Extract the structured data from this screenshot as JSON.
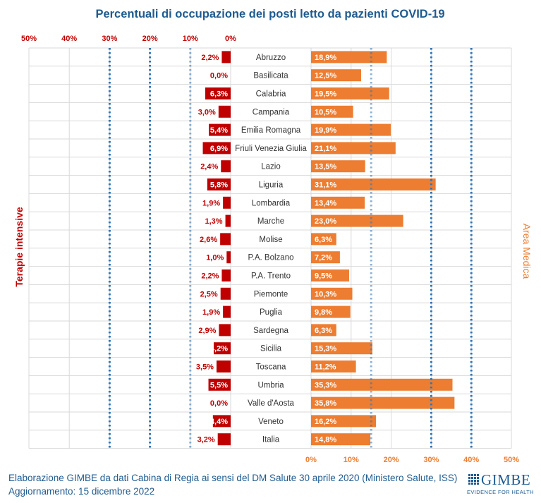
{
  "chart_data": {
    "type": "bar",
    "title": "Percentuali di occupazione dei posti letto da pazienti COVID-19",
    "left_label": "Terapie intensive",
    "right_label": "Area Medica",
    "categories": [
      "Abruzzo",
      "Basilicata",
      "Calabria",
      "Campania",
      "Emilia Romagna",
      "Friuli Venezia Giulia",
      "Lazio",
      "Liguria",
      "Lombardia",
      "Marche",
      "Molise",
      "P.A. Bolzano",
      "P.A. Trento",
      "Piemonte",
      "Puglia",
      "Sardegna",
      "Sicilia",
      "Toscana",
      "Umbria",
      "Valle d'Aosta",
      "Veneto",
      "Italia"
    ],
    "series": [
      {
        "name": "Terapie intensive",
        "color": "#c00000",
        "values": [
          2.2,
          0.0,
          6.3,
          3.0,
          5.4,
          6.9,
          2.4,
          5.8,
          1.9,
          1.3,
          2.6,
          1.0,
          2.2,
          2.5,
          1.9,
          2.9,
          4.2,
          3.5,
          5.5,
          0.0,
          4.4,
          3.2
        ],
        "labels": [
          "2,2%",
          "0,0%",
          "6,3%",
          "3,0%",
          "5,4%",
          "6,9%",
          "2,4%",
          "5,8%",
          "1,9%",
          "1,3%",
          "2,6%",
          "1,0%",
          "2,2%",
          "2,5%",
          "1,9%",
          "2,9%",
          "4,2%",
          "3,5%",
          "5,5%",
          "0,0%",
          "4,4%",
          "3,2%"
        ]
      },
      {
        "name": "Area Medica",
        "color": "#ed7d31",
        "values": [
          18.9,
          12.5,
          19.5,
          10.5,
          19.9,
          21.1,
          13.5,
          31.1,
          13.4,
          23.0,
          6.3,
          7.2,
          9.5,
          10.3,
          9.8,
          6.3,
          15.3,
          11.2,
          35.3,
          35.8,
          16.2,
          14.8
        ],
        "labels": [
          "18,9%",
          "12,5%",
          "19,5%",
          "10,5%",
          "19,9%",
          "21,1%",
          "13,5%",
          "31,1%",
          "13,4%",
          "23,0%",
          "6,3%",
          "7,2%",
          "9,5%",
          "10,3%",
          "9,8%",
          "6,3%",
          "15,3%",
          "11,2%",
          "35,3%",
          "35,8%",
          "16,2%",
          "14,8%"
        ]
      }
    ],
    "left_ticks": [
      "50%",
      "40%",
      "30%",
      "20%",
      "10%",
      "0%"
    ],
    "right_ticks": [
      "0%",
      "10%",
      "20%",
      "30%",
      "40%",
      "50%"
    ],
    "xlim": [
      0,
      50
    ],
    "thresholds": {
      "left": [
        10,
        20,
        30
      ],
      "right": [
        15,
        30,
        40
      ]
    }
  },
  "footer": {
    "line1": "Elaborazione GIMBE da dati Cabina di Regia ai sensi del DM Salute 30 aprile 2020 (Ministero Salute, ISS)",
    "line2": "Aggiornamento: 15 dicembre 2022"
  },
  "logo": {
    "word": "GIMBE",
    "tagline": "EVIDENCE FOR HEALTH"
  },
  "colors": {
    "title": "#1f5b8f",
    "left_axis": "#c00000",
    "right_axis": "#ed7d31",
    "threshold": "#2e75b6"
  }
}
